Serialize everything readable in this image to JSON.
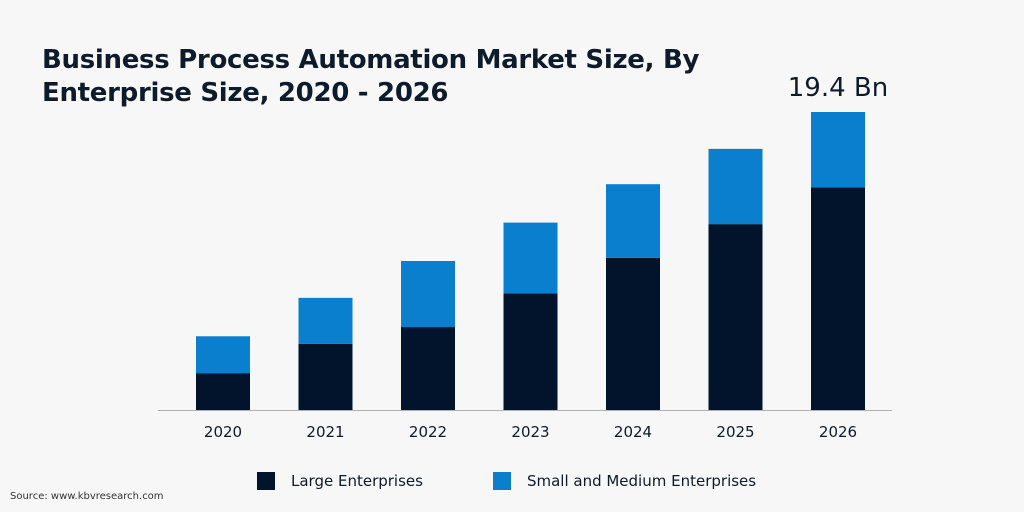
{
  "colors": {
    "background": "#f7f7f8",
    "large": "#02142b",
    "small": "#0a7fce",
    "axis": "#b0b0b0",
    "text": "#0d1b2a"
  },
  "title_lines": [
    "Business Process Automation Market Size, By",
    "Enterprise Size, 2020 - 2026"
  ],
  "source": "Source: www.kbvresearch.com",
  "chart_data": {
    "type": "bar",
    "stacked": true,
    "title": "Business Process Automation Market Size, By Enterprise Size, 2020 - 2026",
    "categories": [
      "2020",
      "2021",
      "2022",
      "2023",
      "2024",
      "2025",
      "2026"
    ],
    "series": [
      {
        "name": "Large Enterprises",
        "color": "#02142b",
        "values": [
          2.4,
          4.3,
          5.4,
          7.6,
          9.9,
          12.1,
          14.5
        ]
      },
      {
        "name": "Small and Medium Enterprises",
        "color": "#0a7fce",
        "values": [
          2.4,
          3.0,
          4.3,
          4.6,
          4.8,
          4.9,
          4.9
        ]
      }
    ],
    "annotations": [
      {
        "category": "2026",
        "text": "19.4 Bn"
      }
    ],
    "legend_position": "bottom",
    "grid": false,
    "ylim": [
      0,
      19.4
    ],
    "xlabel": "",
    "ylabel": ""
  }
}
